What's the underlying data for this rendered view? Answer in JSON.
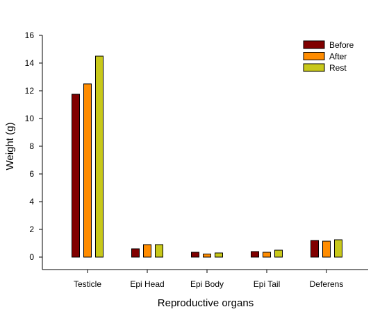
{
  "chart_data": {
    "type": "bar",
    "title": "",
    "xlabel": "Reproductive organs",
    "ylabel": "Weight (g)",
    "categories": [
      "Testicle",
      "Epi Head",
      "Epi Body",
      "Epi Tail",
      "Deferens"
    ],
    "series": [
      {
        "name": "Before",
        "color": "#800000",
        "values": [
          11.75,
          0.6,
          0.35,
          0.4,
          1.2
        ]
      },
      {
        "name": "After",
        "color": "#FF8C00",
        "values": [
          12.5,
          0.9,
          0.22,
          0.35,
          1.15
        ]
      },
      {
        "name": "Rest",
        "color": "#C8C81A",
        "values": [
          14.5,
          0.9,
          0.3,
          0.5,
          1.25
        ]
      }
    ],
    "ylim": [
      0,
      16
    ],
    "yticks": [
      0,
      2,
      4,
      6,
      8,
      10,
      12,
      14,
      16
    ],
    "grid": false,
    "legend_position": "top-right"
  }
}
